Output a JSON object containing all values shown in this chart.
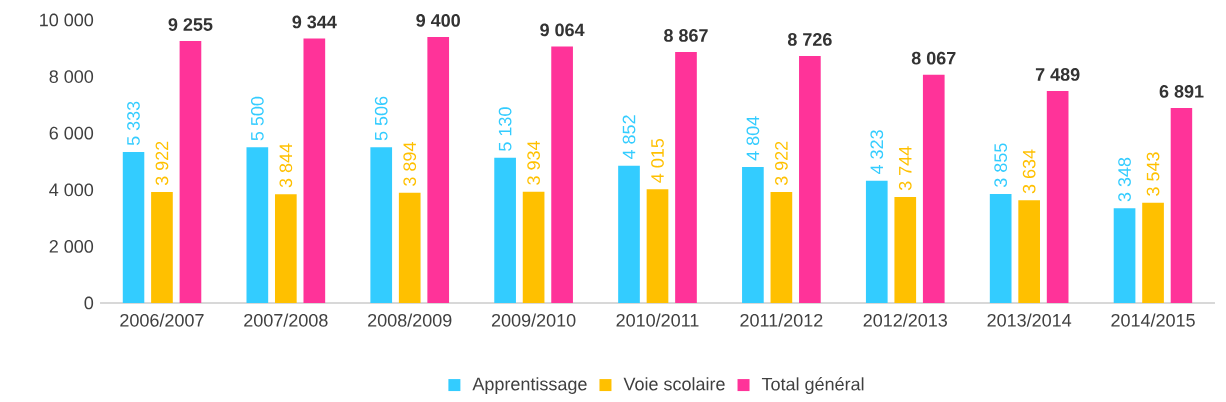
{
  "chart_data": {
    "type": "bar",
    "categories": [
      "2006/2007",
      "2007/2008",
      "2008/2009",
      "2009/2010",
      "2010/2011",
      "2011/2012",
      "2012/2013",
      "2013/2014",
      "2014/2015"
    ],
    "series": [
      {
        "name": "Apprentissage",
        "color": "#33ccff",
        "values": [
          5333,
          5500,
          5506,
          5130,
          4852,
          4804,
          4323,
          3855,
          3348
        ],
        "value_labels": [
          "5 333",
          "5 500",
          "5 506",
          "5 130",
          "4 852",
          "4 804",
          "4 323",
          "3 855",
          "3 348"
        ]
      },
      {
        "name": "Voie scolaire",
        "color": "#ffc000",
        "values": [
          3922,
          3844,
          3894,
          3934,
          4015,
          3922,
          3744,
          3634,
          3543
        ],
        "value_labels": [
          "3 922",
          "3 844",
          "3 894",
          "3 934",
          "4 015",
          "3 922",
          "3 744",
          "3 634",
          "3 543"
        ]
      },
      {
        "name": "Total général",
        "color": "#ff3399",
        "values": [
          9255,
          9344,
          9400,
          9064,
          8867,
          8726,
          8067,
          7489,
          6891
        ],
        "value_labels": [
          "9 255",
          "9 344",
          "9 400",
          "9 064",
          "8 867",
          "8 726",
          "8 067",
          "7 489",
          "6 891"
        ]
      }
    ],
    "ylim": [
      0,
      10000
    ],
    "yticks": [
      0,
      {
        "value": 2000,
        "label": "2 000"
      },
      {
        "value": 4000,
        "label": "4 000"
      },
      {
        "value": 6000,
        "label": "6 000"
      },
      {
        "value": 8000,
        "label": "8 000"
      },
      {
        "value": 10000,
        "label": "10 000"
      }
    ],
    "legend": "bottom"
  }
}
